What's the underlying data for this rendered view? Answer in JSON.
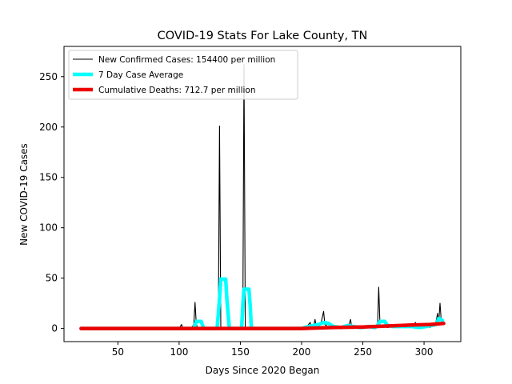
{
  "chart_data": {
    "type": "line",
    "title": "COVID-19 Stats For Lake County, TN",
    "xlabel": "Days Since 2020 Began",
    "ylabel": "New COVID-19 Cases",
    "xlim": [
      6,
      330
    ],
    "ylim": [
      -13,
      280
    ],
    "xticks": [
      50,
      100,
      150,
      200,
      250,
      300
    ],
    "yticks": [
      0,
      50,
      100,
      150,
      200,
      250
    ],
    "grid": false,
    "legend_position": "top-left",
    "series": [
      {
        "name": "New Confirmed Cases: 154400 per million",
        "color": "#000000",
        "points": [
          [
            20,
            0
          ],
          [
            100,
            0
          ],
          [
            102,
            4
          ],
          [
            103,
            0
          ],
          [
            110,
            0
          ],
          [
            112,
            4
          ],
          [
            113,
            26
          ],
          [
            114,
            5
          ],
          [
            115,
            0
          ],
          [
            130,
            0
          ],
          [
            132,
            0
          ],
          [
            133,
            201
          ],
          [
            134,
            0
          ],
          [
            150,
            0
          ],
          [
            152,
            0
          ],
          [
            153,
            262
          ],
          [
            154,
            0
          ],
          [
            200,
            0
          ],
          [
            205,
            3
          ],
          [
            207,
            6
          ],
          [
            208,
            2
          ],
          [
            210,
            3
          ],
          [
            211,
            9
          ],
          [
            212,
            1
          ],
          [
            214,
            2
          ],
          [
            216,
            6
          ],
          [
            218,
            17
          ],
          [
            219,
            4
          ],
          [
            220,
            3
          ],
          [
            222,
            6
          ],
          [
            224,
            1
          ],
          [
            230,
            0
          ],
          [
            235,
            2
          ],
          [
            237,
            3
          ],
          [
            238,
            1
          ],
          [
            240,
            9
          ],
          [
            241,
            0
          ],
          [
            245,
            2
          ],
          [
            250,
            0
          ],
          [
            255,
            2
          ],
          [
            258,
            1
          ],
          [
            260,
            0
          ],
          [
            262,
            1
          ],
          [
            263,
            41
          ],
          [
            264,
            3
          ],
          [
            266,
            2
          ],
          [
            268,
            3
          ],
          [
            270,
            1
          ],
          [
            275,
            2
          ],
          [
            280,
            2
          ],
          [
            285,
            3
          ],
          [
            288,
            1
          ],
          [
            290,
            2
          ],
          [
            293,
            6
          ],
          [
            294,
            1
          ],
          [
            296,
            2
          ],
          [
            298,
            1
          ],
          [
            300,
            2
          ],
          [
            303,
            3
          ],
          [
            305,
            1
          ],
          [
            307,
            5
          ],
          [
            308,
            2
          ],
          [
            310,
            8
          ],
          [
            311,
            15
          ],
          [
            312,
            6
          ],
          [
            313,
            25
          ],
          [
            314,
            8
          ],
          [
            315,
            6
          ]
        ]
      },
      {
        "name": "7 Day Case Average",
        "color": "#00ffff",
        "points": [
          [
            20,
            0
          ],
          [
            112,
            0
          ],
          [
            114,
            7
          ],
          [
            118,
            7
          ],
          [
            120,
            0
          ],
          [
            131,
            0
          ],
          [
            133,
            29
          ],
          [
            134,
            49
          ],
          [
            138,
            49
          ],
          [
            139,
            29
          ],
          [
            141,
            0
          ],
          [
            151,
            0
          ],
          [
            152,
            23
          ],
          [
            153,
            39
          ],
          [
            157,
            39
          ],
          [
            158,
            23
          ],
          [
            159,
            0
          ],
          [
            200,
            0
          ],
          [
            206,
            2
          ],
          [
            210,
            3
          ],
          [
            214,
            4
          ],
          [
            218,
            6
          ],
          [
            222,
            5
          ],
          [
            226,
            2
          ],
          [
            232,
            1
          ],
          [
            238,
            3
          ],
          [
            242,
            2
          ],
          [
            248,
            1
          ],
          [
            255,
            2
          ],
          [
            260,
            1
          ],
          [
            262,
            3
          ],
          [
            264,
            7
          ],
          [
            268,
            7
          ],
          [
            270,
            3
          ],
          [
            275,
            2
          ],
          [
            282,
            2
          ],
          [
            290,
            2
          ],
          [
            296,
            1
          ],
          [
            302,
            2
          ],
          [
            306,
            3
          ],
          [
            310,
            4
          ],
          [
            312,
            10
          ],
          [
            315,
            8
          ]
        ]
      },
      {
        "name": "Cumulative Deaths: 712.7 per million",
        "color": "#ee0000",
        "points": [
          [
            20,
            0
          ],
          [
            180,
            0
          ],
          [
            200,
            0
          ],
          [
            225,
            1
          ],
          [
            250,
            1.5
          ],
          [
            270,
            2.5
          ],
          [
            290,
            3.5
          ],
          [
            305,
            4
          ],
          [
            310,
            4.5
          ],
          [
            316,
            5
          ]
        ]
      }
    ]
  }
}
